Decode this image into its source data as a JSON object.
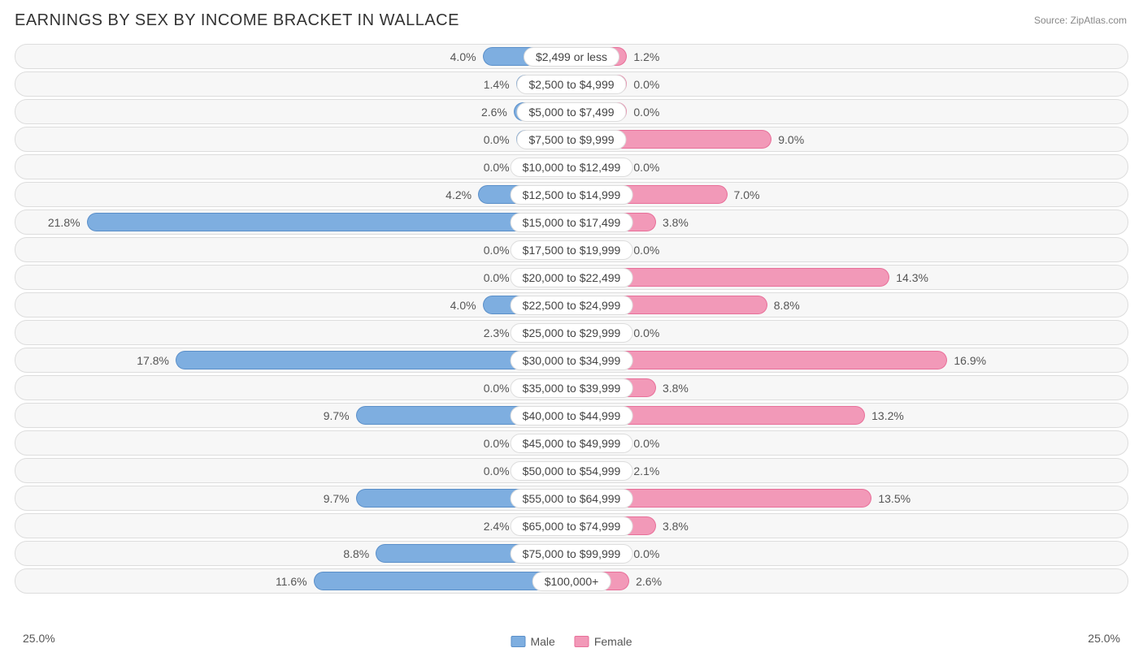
{
  "title": "EARNINGS BY SEX BY INCOME BRACKET IN WALLACE",
  "source": "Source: ZipAtlas.com",
  "chart": {
    "type": "diverging-bar",
    "max_pct": 25.0,
    "min_bar_pct": 2.5,
    "axis_left_label": "25.0%",
    "axis_right_label": "25.0%",
    "track_bg": "#f7f7f7",
    "track_border": "#dddddd",
    "label_bg": "#ffffff",
    "label_border": "#dddddd",
    "male_fill": "#7eaee0",
    "male_stroke": "#5a8fc9",
    "female_fill": "#f299b8",
    "female_stroke": "#e86f99",
    "label_fontsize": 14,
    "pct_fontsize": 14,
    "title_fontsize": 20,
    "rows": [
      {
        "label": "$2,499 or less",
        "male": 4.0,
        "female": 1.2
      },
      {
        "label": "$2,500 to $4,999",
        "male": 1.4,
        "female": 0.0
      },
      {
        "label": "$5,000 to $7,499",
        "male": 2.6,
        "female": 0.0
      },
      {
        "label": "$7,500 to $9,999",
        "male": 0.0,
        "female": 9.0
      },
      {
        "label": "$10,000 to $12,499",
        "male": 0.0,
        "female": 0.0
      },
      {
        "label": "$12,500 to $14,999",
        "male": 4.2,
        "female": 7.0
      },
      {
        "label": "$15,000 to $17,499",
        "male": 21.8,
        "female": 3.8
      },
      {
        "label": "$17,500 to $19,999",
        "male": 0.0,
        "female": 0.0
      },
      {
        "label": "$20,000 to $22,499",
        "male": 0.0,
        "female": 14.3
      },
      {
        "label": "$22,500 to $24,999",
        "male": 4.0,
        "female": 8.8
      },
      {
        "label": "$25,000 to $29,999",
        "male": 2.3,
        "female": 0.0
      },
      {
        "label": "$30,000 to $34,999",
        "male": 17.8,
        "female": 16.9
      },
      {
        "label": "$35,000 to $39,999",
        "male": 0.0,
        "female": 3.8
      },
      {
        "label": "$40,000 to $44,999",
        "male": 9.7,
        "female": 13.2
      },
      {
        "label": "$45,000 to $49,999",
        "male": 0.0,
        "female": 0.0
      },
      {
        "label": "$50,000 to $54,999",
        "male": 0.0,
        "female": 2.1
      },
      {
        "label": "$55,000 to $64,999",
        "male": 9.7,
        "female": 13.5
      },
      {
        "label": "$65,000 to $74,999",
        "male": 2.4,
        "female": 3.8
      },
      {
        "label": "$75,000 to $99,999",
        "male": 8.8,
        "female": 0.0
      },
      {
        "label": "$100,000+",
        "male": 11.6,
        "female": 2.6
      }
    ]
  },
  "legend": {
    "male_label": "Male",
    "female_label": "Female"
  }
}
